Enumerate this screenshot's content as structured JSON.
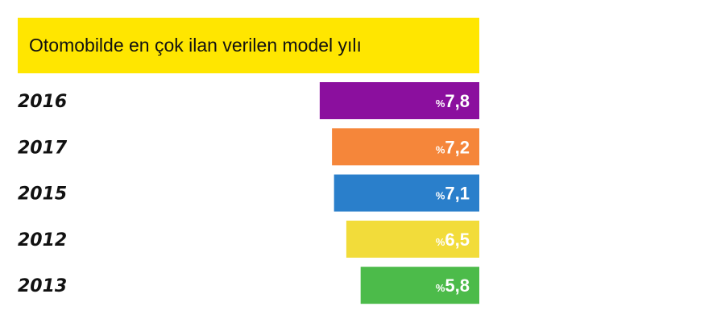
{
  "chart_data": {
    "type": "bar",
    "orientation": "horizontal",
    "title": "Otomobilde en çok ilan verilen model yılı",
    "categories": [
      "2016",
      "2017",
      "2015",
      "2012",
      "2013"
    ],
    "values": [
      7.8,
      7.2,
      7.1,
      6.5,
      5.8
    ],
    "value_labels": [
      "7,8",
      "7,2",
      "7,1",
      "6,5",
      "5,8"
    ],
    "value_prefix": "%",
    "bar_colors": [
      "#8b0f9e",
      "#f5863a",
      "#2a7fcb",
      "#f2dc3a",
      "#4cbb4a"
    ],
    "title_background": "#ffe600",
    "bar_alignment": "right",
    "grid": false,
    "legend": "none"
  }
}
